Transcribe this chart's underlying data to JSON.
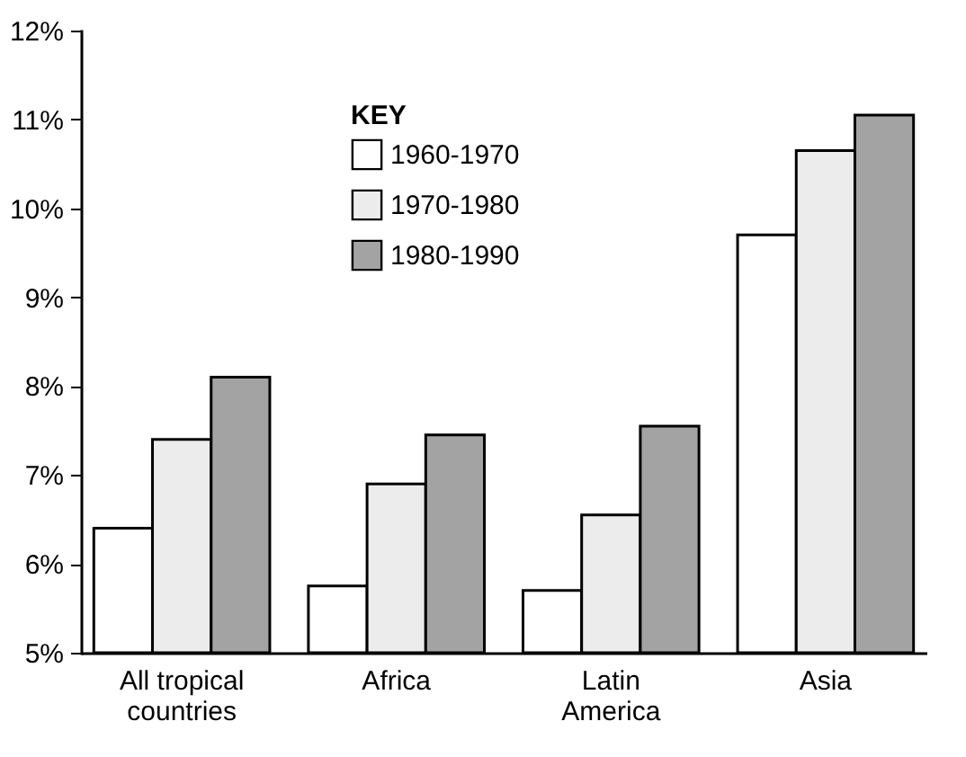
{
  "chart_data": {
    "type": "bar",
    "categories": [
      "All tropical countries",
      "Africa",
      "Latin America",
      "Asia"
    ],
    "series": [
      {
        "name": "1960-1970",
        "color": "#ffffff",
        "values": [
          6.4,
          5.75,
          5.7,
          9.7
        ]
      },
      {
        "name": "1970-1980",
        "color": "#ececec",
        "values": [
          7.4,
          6.9,
          6.55,
          10.65
        ]
      },
      {
        "name": "1980-1990",
        "color": "#a3a3a3",
        "values": [
          8.1,
          7.45,
          7.55,
          11.05
        ]
      }
    ],
    "legend_title": "KEY",
    "legend": "top left",
    "grid": false,
    "ylim": [
      5,
      12
    ],
    "yticks": [
      {
        "value": 5,
        "label": "5%"
      },
      {
        "value": 6,
        "label": "6%"
      },
      {
        "value": 7,
        "label": "7%"
      },
      {
        "value": 8,
        "label": "8%"
      },
      {
        "value": 9,
        "label": "9%"
      },
      {
        "value": 10,
        "label": "10%"
      },
      {
        "value": 11,
        "label": "11%"
      },
      {
        "value": 12,
        "label": "12%"
      }
    ]
  }
}
